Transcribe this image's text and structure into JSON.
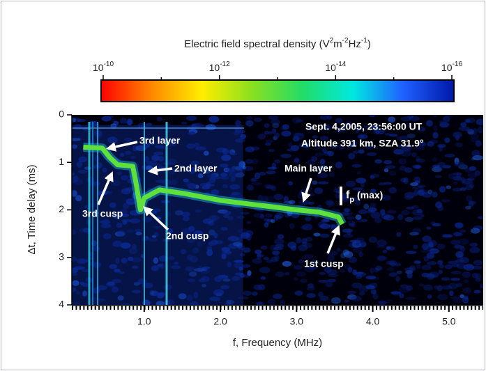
{
  "chart_data": {
    "type": "ionogram",
    "colorbar_label": [
      "Electric field spectral density (V",
      "2",
      "m",
      "-2",
      "Hz",
      "-1",
      ")"
    ],
    "clim": [
      1e-10,
      1e-16
    ],
    "cticks": [
      {
        "value": 1e-10,
        "base": "10",
        "exponent": "-10"
      },
      {
        "value": 1e-12,
        "base": "10",
        "exponent": "-12"
      },
      {
        "value": 1e-14,
        "base": "10",
        "exponent": "-14"
      },
      {
        "value": 1e-16,
        "base": "10",
        "exponent": "-16"
      }
    ],
    "colormap": [
      "#ff0000",
      "#ff8800",
      "#ffee00",
      "#88e020",
      "#22dd66",
      "#00e8e0",
      "#2060ff",
      "#0018a8"
    ],
    "xlabel": "f, Frequency (MHz)",
    "ylabel": "Δt, Time delay (ms)",
    "xlim": [
      0.05,
      5.45
    ],
    "ylim": [
      0,
      4
    ],
    "ylim_inverted": true,
    "xticks": [
      {
        "value": 1,
        "label": "1.0"
      },
      {
        "value": 2,
        "label": "2.0"
      },
      {
        "value": 3,
        "label": "3.0"
      },
      {
        "value": 4,
        "label": "4.0"
      },
      {
        "value": 5,
        "label": "5.0"
      }
    ],
    "yticks": [
      0,
      1,
      2,
      3,
      4
    ],
    "series": [
      {
        "color": "#5fe03a",
        "x": [
          0.2,
          0.45,
          0.55,
          0.65,
          0.85,
          0.9,
          0.95,
          1.0,
          1.2,
          1.5,
          2.0,
          2.5,
          3.0,
          3.3,
          3.55,
          3.6
        ],
        "values": [
          0.68,
          0.7,
          0.9,
          1.05,
          1.08,
          1.5,
          2.0,
          1.75,
          1.58,
          1.65,
          1.8,
          1.9,
          2.0,
          2.05,
          2.15,
          2.3
        ]
      }
    ],
    "annotations": [
      "Sept. 4,2005, 23:56:00 UT",
      "Altitude 391 km, SZA 31.9°",
      "3rd layer",
      "2nd layer",
      "Main layer",
      "3rd cusp",
      "2nd cusp",
      "1st cusp"
    ],
    "fp_label": {
      "base": "f",
      "sub": "p",
      "rest": " (max)"
    }
  }
}
